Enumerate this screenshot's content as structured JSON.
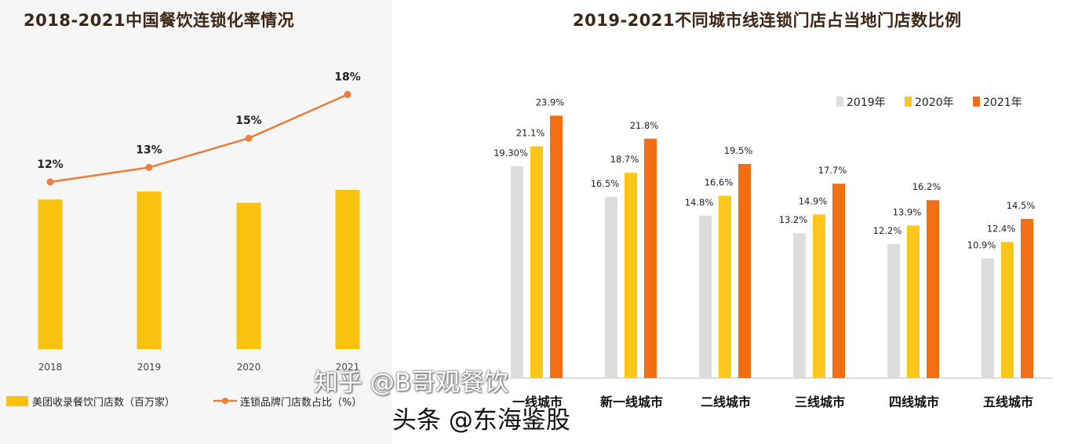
{
  "left_chart": {
    "title": "2018-2021中国餐饮连锁化率情况",
    "legend": {
      "bar_label": "美团收录餐饮门店数（百万家）",
      "line_label": "连锁品牌门店数占比（%）"
    },
    "colors": {
      "bar": "#f9c20f",
      "line": "#e8803a",
      "background": "#f6f6f6"
    }
  },
  "right_chart": {
    "title": "2019-2021不同城市线连锁门店占当地门店数比例",
    "colors": {
      "2019年": "#dcdcdc",
      "2020年": "#fcc719",
      "2021年": "#f36e14"
    }
  },
  "watermarks": {
    "zhihu": "知乎 @B哥观餐饮",
    "toutiao": "头条 @东海鉴股"
  },
  "chart_data": [
    {
      "type": "bar",
      "title": "2018-2021中国餐饮连锁化率情况",
      "categories": [
        "2018",
        "2019",
        "2020",
        "2021"
      ],
      "series": [
        {
          "name": "美团收录餐饮门店数（百万家）",
          "type": "bar",
          "values": [
            9.3,
            9.8,
            9.1,
            9.9
          ]
        },
        {
          "name": "连锁品牌门店数占比（%）",
          "type": "line",
          "values": [
            12,
            13,
            15,
            18
          ],
          "labels": [
            "12%",
            "13%",
            "15%",
            "18%"
          ]
        }
      ],
      "legend_position": "bottom",
      "grid": false
    },
    {
      "type": "bar",
      "title": "2019-2021不同城市线连锁门店占当地门店数比例",
      "categories": [
        "一线城市",
        "新一线城市",
        "二线城市",
        "三线城市",
        "四线城市",
        "五线城市"
      ],
      "series": [
        {
          "name": "2019年",
          "values": [
            19.3,
            16.5,
            14.8,
            13.2,
            12.2,
            10.9
          ],
          "labels": [
            "19.30%",
            "16.5%",
            "14.8%",
            "13.2%",
            "12.2%",
            "10.9%"
          ]
        },
        {
          "name": "2020年",
          "values": [
            21.1,
            18.7,
            16.6,
            14.9,
            13.9,
            12.4
          ],
          "labels": [
            "21.1%",
            "18.7%",
            "16.6%",
            "14.9%",
            "13.9%",
            "12.4%"
          ]
        },
        {
          "name": "2021年",
          "values": [
            23.9,
            21.8,
            19.5,
            17.7,
            16.2,
            14.5
          ],
          "labels": [
            "23.9%",
            "21.8%",
            "19.5%",
            "17.7%",
            "16.2%",
            "14.5%"
          ]
        }
      ],
      "legend_position": "top-right",
      "grid": false
    }
  ]
}
